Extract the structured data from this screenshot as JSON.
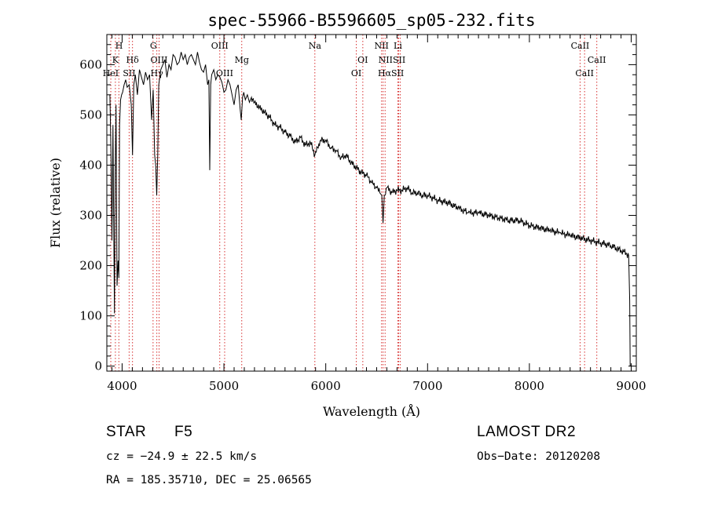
{
  "chart_data": {
    "type": "line",
    "title": "spec-55966-B5596605_sp05-232.fits",
    "xlabel": "Wavelength (Å)",
    "ylabel": "Flux (relative)",
    "xlim": [
      3850,
      9050
    ],
    "ylim": [
      -10,
      660
    ],
    "xticks": [
      4000,
      5000,
      6000,
      7000,
      8000,
      9000
    ],
    "yticks": [
      0,
      100,
      200,
      300,
      400,
      500,
      600
    ],
    "series": [
      {
        "name": "flux",
        "x": [
          3880,
          3890,
          3900,
          3910,
          3915,
          3925,
          3932,
          3940,
          3950,
          3960,
          3968,
          3975,
          3985,
          3995,
          4005,
          4020,
          4035,
          4050,
          4070,
          4090,
          4102,
          4115,
          4130,
          4150,
          4170,
          4190,
          4210,
          4230,
          4250,
          4270,
          4290,
          4305,
          4320,
          4330,
          4340,
          4350,
          4360,
          4380,
          4400,
          4420,
          4440,
          4460,
          4480,
          4500,
          4520,
          4540,
          4560,
          4580,
          4600,
          4620,
          4640,
          4660,
          4680,
          4700,
          4720,
          4740,
          4760,
          4780,
          4800,
          4820,
          4840,
          4852,
          4861,
          4870,
          4880,
          4900,
          4920,
          4940,
          4960,
          4980,
          5000,
          5020,
          5040,
          5060,
          5080,
          5100,
          5120,
          5140,
          5160,
          5170,
          5183,
          5195,
          5210,
          5230,
          5250,
          5270,
          5300,
          5350,
          5400,
          5450,
          5500,
          5550,
          5600,
          5650,
          5700,
          5750,
          5800,
          5850,
          5893,
          5920,
          5950,
          6000,
          6050,
          6100,
          6150,
          6200,
          6250,
          6300,
          6350,
          6400,
          6450,
          6500,
          6530,
          6550,
          6563,
          6575,
          6600,
          6650,
          6700,
          6750,
          6800,
          6850,
          6900,
          6950,
          7000,
          7100,
          7200,
          7300,
          7400,
          7500,
          7600,
          7700,
          7800,
          7900,
          8000,
          8100,
          8200,
          8300,
          8400,
          8500,
          8600,
          8700,
          8800,
          8850,
          8900,
          8950,
          8975,
          8985,
          8990
        ],
        "values": [
          540,
          430,
          250,
          480,
          350,
          105,
          380,
          520,
          160,
          210,
          175,
          480,
          530,
          540,
          545,
          560,
          570,
          555,
          560,
          520,
          420,
          560,
          580,
          540,
          590,
          575,
          560,
          585,
          570,
          580,
          490,
          550,
          420,
          400,
          340,
          420,
          560,
          590,
          600,
          610,
          575,
          600,
          590,
          620,
          615,
          600,
          605,
          625,
          610,
          620,
          600,
          615,
          620,
          610,
          600,
          625,
          605,
          590,
          585,
          600,
          560,
          570,
          390,
          560,
          580,
          590,
          570,
          580,
          575,
          565,
          545,
          550,
          570,
          560,
          540,
          520,
          550,
          560,
          510,
          490,
          535,
          545,
          530,
          540,
          525,
          535,
          525,
          515,
          505,
          495,
          480,
          475,
          465,
          458,
          445,
          455,
          440,
          445,
          420,
          435,
          450,
          450,
          435,
          430,
          415,
          420,
          405,
          395,
          385,
          380,
          365,
          355,
          345,
          340,
          285,
          340,
          355,
          345,
          350,
          350,
          355,
          345,
          345,
          340,
          340,
          330,
          325,
          315,
          305,
          305,
          300,
          295,
          290,
          290,
          280,
          275,
          270,
          265,
          260,
          255,
          250,
          245,
          240,
          235,
          230,
          225,
          220,
          130,
          0
        ]
      }
    ],
    "line_labels": [
      {
        "text": "H",
        "x": 3970,
        "row": 1
      },
      {
        "text": "K",
        "x": 3934,
        "row": 2
      },
      {
        "text": "Hδ",
        "x": 4102,
        "row": 2
      },
      {
        "text": "HeI",
        "x": 3888,
        "row": 3
      },
      {
        "text": "SII",
        "x": 4070,
        "row": 3
      },
      {
        "text": "G",
        "x": 4307,
        "row": 1
      },
      {
        "text": "OIII",
        "x": 4363,
        "row": 2
      },
      {
        "text": "Hγ",
        "x": 4341,
        "row": 3
      },
      {
        "text": "OIII",
        "x": 4959,
        "row": 1
      },
      {
        "text": "Mg",
        "x": 5175,
        "row": 2
      },
      {
        "text": "OIII",
        "x": 5007,
        "row": 3
      },
      {
        "text": "Na",
        "x": 5893,
        "row": 1
      },
      {
        "text": "NII",
        "x": 6548,
        "row": 1
      },
      {
        "text": "Li",
        "x": 6708,
        "row": 1
      },
      {
        "text": "OI",
        "x": 6364,
        "row": 2
      },
      {
        "text": "NIISII",
        "x": 6650,
        "row": 2
      },
      {
        "text": "OI",
        "x": 6300,
        "row": 3
      },
      {
        "text": "HαSII",
        "x": 6640,
        "row": 3
      },
      {
        "text": "CaII",
        "x": 8498,
        "row": 1
      },
      {
        "text": "CaII",
        "x": 8662,
        "row": 2
      },
      {
        "text": "CaII",
        "x": 8542,
        "row": 3
      }
    ],
    "line_markers": [
      3889,
      3934,
      3968,
      4069,
      4102,
      4304,
      4341,
      4363,
      4959,
      5007,
      5175,
      5893,
      6300,
      6364,
      6548,
      6563,
      6583,
      6708,
      6716,
      6731,
      8498,
      8542,
      8662
    ],
    "marker_color": "#d73030"
  },
  "info": {
    "object_class": "STAR",
    "subclass": "F5",
    "survey": "LAMOST DR2",
    "cz": "cz = −24.9 ± 22.5 km/s",
    "obs_date": "Obs−Date: 20120208",
    "coords": "RA = 185.35710, DEC =  25.06565"
  }
}
